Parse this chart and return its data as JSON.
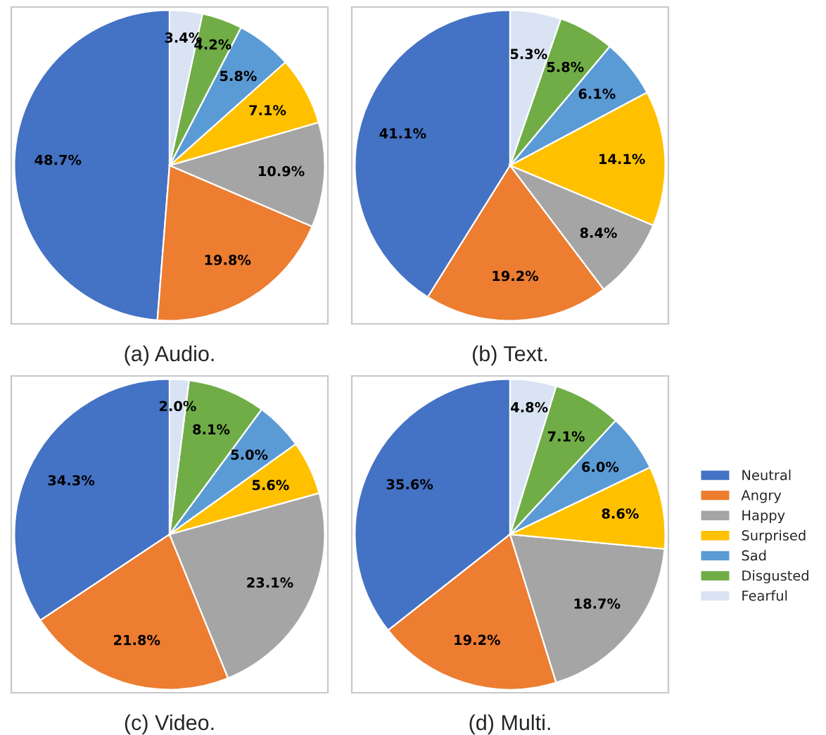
{
  "chart_data": [
    {
      "type": "pie",
      "title": "(a) Audio.",
      "categories": [
        "Neutral",
        "Angry",
        "Happy",
        "Surprised",
        "Sad",
        "Disgusted",
        "Fearful"
      ],
      "values": [
        48.7,
        19.8,
        10.9,
        7.1,
        5.8,
        4.2,
        3.4
      ],
      "colors": [
        "#4472c4",
        "#ed7d31",
        "#a5a5a5",
        "#ffc000",
        "#5b9bd5",
        "#70ad47",
        "#dae3f3"
      ],
      "value_labels": [
        "48.7%",
        "19.8%",
        "10.9%",
        "7.1%",
        "5.8%",
        "4.2%",
        "3.4%"
      ],
      "legend": "right"
    },
    {
      "type": "pie",
      "title": "(b) Text.",
      "categories": [
        null,
        null,
        null,
        null,
        null,
        null,
        null
      ],
      "values": [
        41.1,
        19.2,
        8.4,
        14.1,
        6.1,
        5.8,
        5.3
      ],
      "colors": [
        "#4472c4",
        "#ed7d31",
        "#a5a5a5",
        "#ffc000",
        "#5b9bd5",
        "#70ad47",
        "#dae3f3"
      ],
      "value_labels": [
        "41.1%",
        "19.2%",
        "8.4%",
        "14.1%",
        "6.1%",
        "5.8%",
        "5.3%"
      ],
      "legend": false
    },
    {
      "type": "pie",
      "title": "(c) Video.",
      "categories": [
        null,
        null,
        null,
        null,
        null,
        null,
        null
      ],
      "values": [
        34.3,
        21.8,
        23.1,
        5.6,
        5.0,
        8.1,
        2.0
      ],
      "colors": [
        "#4472c4",
        "#ed7d31",
        "#a5a5a5",
        "#ffc000",
        "#5b9bd5",
        "#70ad47",
        "#dae3f3"
      ],
      "value_labels": [
        "34.3%",
        "21.8%",
        "23.1%",
        "5.6%",
        "5.0%",
        "8.1%",
        "2.0%"
      ],
      "legend": false
    },
    {
      "type": "pie",
      "title": "(d) Multi.",
      "categories": [
        null,
        null,
        null,
        null,
        null,
        null,
        null
      ],
      "values": [
        35.6,
        19.2,
        18.7,
        8.6,
        6.0,
        7.1,
        4.8
      ],
      "colors": [
        "#4472c4",
        "#ed7d31",
        "#a5a5a5",
        "#ffc000",
        "#5b9bd5",
        "#70ad47",
        "#dae3f3"
      ],
      "value_labels": [
        "35.6%",
        "19.2%",
        "18.7%",
        "8.6%",
        "6.0%",
        "7.1%",
        "4.8%"
      ],
      "legend": false
    }
  ]
}
